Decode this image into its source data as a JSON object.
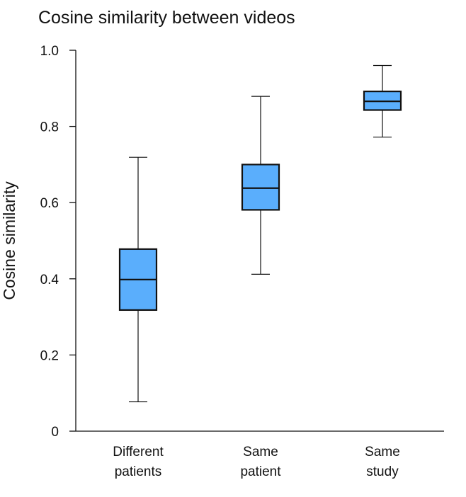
{
  "chart_data": {
    "type": "box",
    "title": "Cosine similarity between videos",
    "xlabel": "",
    "ylabel": "Cosine similarity",
    "ylim": [
      0,
      1.0
    ],
    "yticks": [
      "0",
      "0.2",
      "0.4",
      "0.6",
      "0.8",
      "1.0"
    ],
    "ytick_values": [
      0,
      0.2,
      0.4,
      0.6,
      0.8,
      1.0
    ],
    "grid": false,
    "box_color": "#5aaefc",
    "edge_color": "#111111",
    "categories": [
      [
        "Different",
        "patients"
      ],
      [
        "Same",
        "patient"
      ],
      [
        "Same",
        "study"
      ]
    ],
    "boxes": [
      {
        "whisker_low": 0.077,
        "q1": 0.318,
        "median": 0.398,
        "q3": 0.478,
        "whisker_high": 0.719
      },
      {
        "whisker_low": 0.412,
        "q1": 0.581,
        "median": 0.638,
        "q3": 0.7,
        "whisker_high": 0.879
      },
      {
        "whisker_low": 0.772,
        "q1": 0.843,
        "median": 0.866,
        "q3": 0.892,
        "whisker_high": 0.96
      }
    ]
  }
}
